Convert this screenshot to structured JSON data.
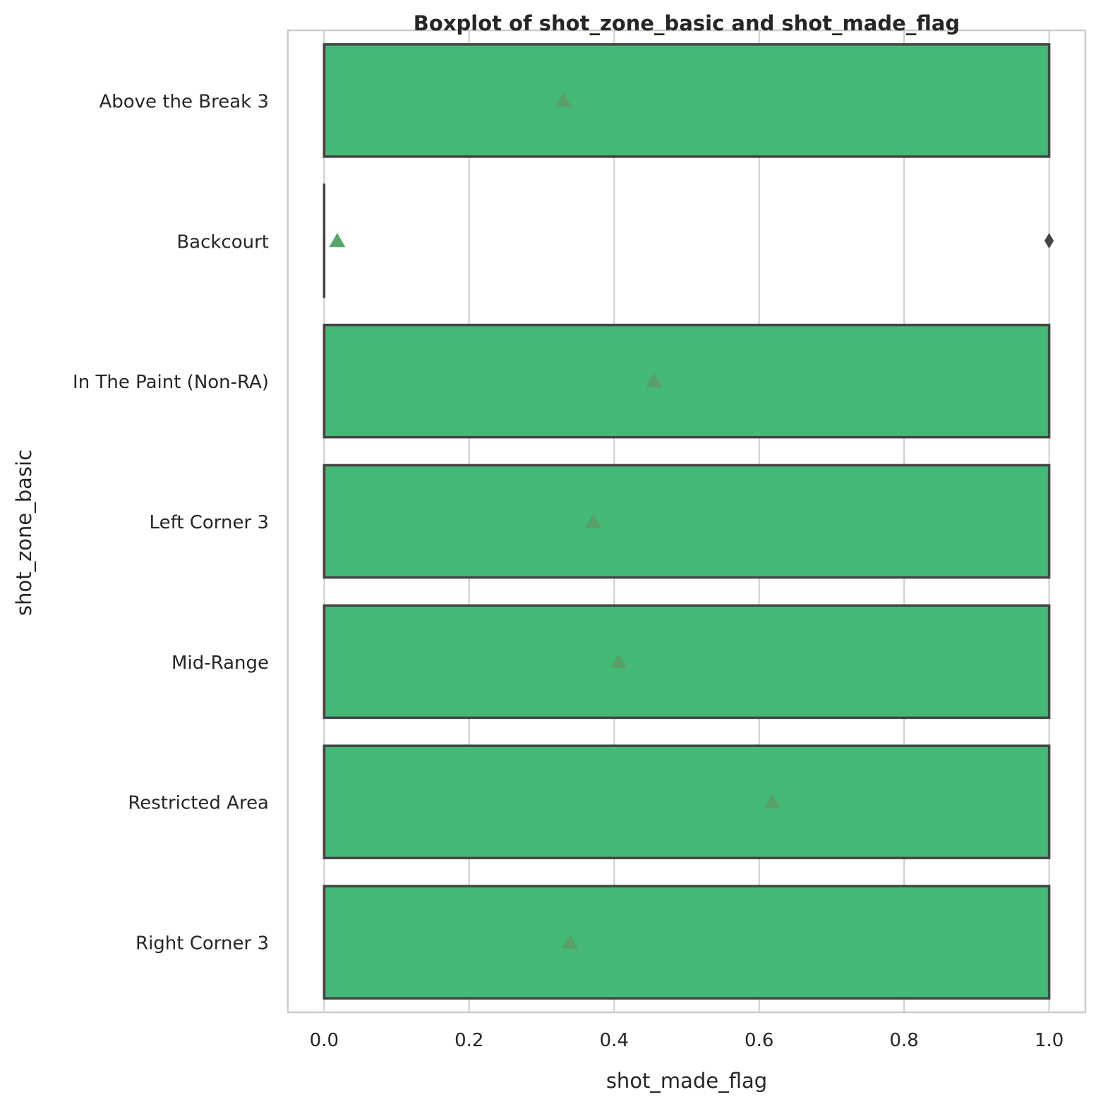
{
  "chart_data": {
    "type": "boxplot",
    "orientation": "horizontal",
    "title": "Boxplot of shot_zone_basic and shot_made_flag",
    "xlabel": "shot_made_flag",
    "ylabel": "shot_zone_basic",
    "xlim": [
      -0.05,
      1.05
    ],
    "x_ticks": [
      0.0,
      0.2,
      0.4,
      0.6,
      0.8,
      1.0
    ],
    "x_tick_labels": [
      "0.0",
      "0.2",
      "0.4",
      "0.6",
      "0.8",
      "1.0"
    ],
    "grid": true,
    "colors": {
      "box_fill": "#44b876",
      "box_edge": "#444444",
      "mean_marker_box": "#5a9e69",
      "mean_marker_line": "#55a868",
      "grid": "#cccccc",
      "spine": "#cccccc"
    },
    "categories": [
      "Above the Break 3",
      "Backcourt",
      "In The Paint (Non-RA)",
      "Left Corner 3",
      "Mid-Range",
      "Restricted Area",
      "Right Corner 3"
    ],
    "boxes": [
      {
        "category": "Above the Break 3",
        "whisker_low": 0,
        "q1": 0,
        "median": 0,
        "q3": 1,
        "whisker_high": 1,
        "mean": 0.33,
        "outliers": []
      },
      {
        "category": "Backcourt",
        "whisker_low": 0,
        "q1": 0,
        "median": 0,
        "q3": 0,
        "whisker_high": 0,
        "mean": 0.018,
        "outliers": [
          1
        ]
      },
      {
        "category": "In The Paint (Non-RA)",
        "whisker_low": 0,
        "q1": 0,
        "median": 0,
        "q3": 1,
        "whisker_high": 1,
        "mean": 0.455,
        "outliers": []
      },
      {
        "category": "Left Corner 3",
        "whisker_low": 0,
        "q1": 0,
        "median": 0,
        "q3": 1,
        "whisker_high": 1,
        "mean": 0.371,
        "outliers": []
      },
      {
        "category": "Mid-Range",
        "whisker_low": 0,
        "q1": 0,
        "median": 0,
        "q3": 1,
        "whisker_high": 1,
        "mean": 0.406,
        "outliers": []
      },
      {
        "category": "Restricted Area",
        "whisker_low": 0,
        "q1": 0,
        "median": 0,
        "q3": 1,
        "whisker_high": 1,
        "mean": 0.618,
        "outliers": []
      },
      {
        "category": "Right Corner 3",
        "whisker_low": 0,
        "q1": 0,
        "median": 0,
        "q3": 1,
        "whisker_high": 1,
        "mean": 0.339,
        "outliers": []
      }
    ]
  }
}
